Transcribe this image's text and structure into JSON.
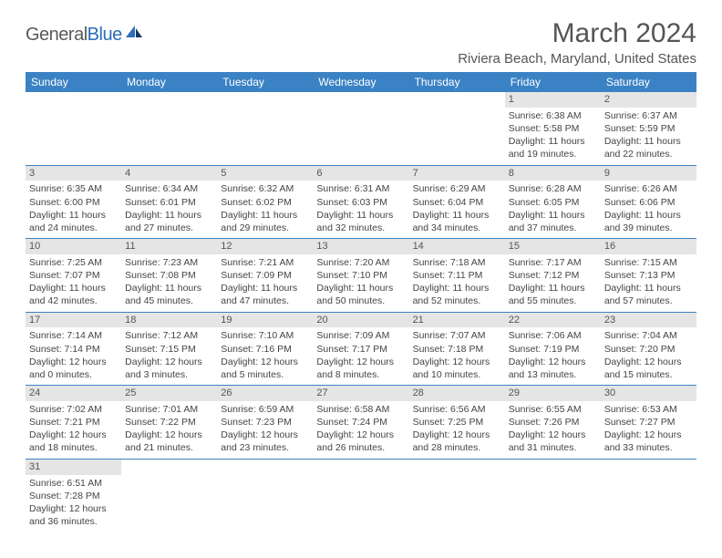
{
  "logo": {
    "text1": "General",
    "text2": "Blue"
  },
  "title": "March 2024",
  "location": "Riviera Beach, Maryland, United States",
  "colors": {
    "header_bg": "#3b82c4",
    "header_text": "#ffffff",
    "daynum_bg": "#e5e5e5",
    "border": "#3b82c4",
    "text": "#444444",
    "title_color": "#555555"
  },
  "day_headers": [
    "Sunday",
    "Monday",
    "Tuesday",
    "Wednesday",
    "Thursday",
    "Friday",
    "Saturday"
  ],
  "weeks": [
    [
      null,
      null,
      null,
      null,
      null,
      {
        "d": "1",
        "sr": "6:38 AM",
        "ss": "5:58 PM",
        "dl1": "11 hours",
        "dl2": "and 19 minutes."
      },
      {
        "d": "2",
        "sr": "6:37 AM",
        "ss": "5:59 PM",
        "dl1": "11 hours",
        "dl2": "and 22 minutes."
      }
    ],
    [
      {
        "d": "3",
        "sr": "6:35 AM",
        "ss": "6:00 PM",
        "dl1": "11 hours",
        "dl2": "and 24 minutes."
      },
      {
        "d": "4",
        "sr": "6:34 AM",
        "ss": "6:01 PM",
        "dl1": "11 hours",
        "dl2": "and 27 minutes."
      },
      {
        "d": "5",
        "sr": "6:32 AM",
        "ss": "6:02 PM",
        "dl1": "11 hours",
        "dl2": "and 29 minutes."
      },
      {
        "d": "6",
        "sr": "6:31 AM",
        "ss": "6:03 PM",
        "dl1": "11 hours",
        "dl2": "and 32 minutes."
      },
      {
        "d": "7",
        "sr": "6:29 AM",
        "ss": "6:04 PM",
        "dl1": "11 hours",
        "dl2": "and 34 minutes."
      },
      {
        "d": "8",
        "sr": "6:28 AM",
        "ss": "6:05 PM",
        "dl1": "11 hours",
        "dl2": "and 37 minutes."
      },
      {
        "d": "9",
        "sr": "6:26 AM",
        "ss": "6:06 PM",
        "dl1": "11 hours",
        "dl2": "and 39 minutes."
      }
    ],
    [
      {
        "d": "10",
        "sr": "7:25 AM",
        "ss": "7:07 PM",
        "dl1": "11 hours",
        "dl2": "and 42 minutes."
      },
      {
        "d": "11",
        "sr": "7:23 AM",
        "ss": "7:08 PM",
        "dl1": "11 hours",
        "dl2": "and 45 minutes."
      },
      {
        "d": "12",
        "sr": "7:21 AM",
        "ss": "7:09 PM",
        "dl1": "11 hours",
        "dl2": "and 47 minutes."
      },
      {
        "d": "13",
        "sr": "7:20 AM",
        "ss": "7:10 PM",
        "dl1": "11 hours",
        "dl2": "and 50 minutes."
      },
      {
        "d": "14",
        "sr": "7:18 AM",
        "ss": "7:11 PM",
        "dl1": "11 hours",
        "dl2": "and 52 minutes."
      },
      {
        "d": "15",
        "sr": "7:17 AM",
        "ss": "7:12 PM",
        "dl1": "11 hours",
        "dl2": "and 55 minutes."
      },
      {
        "d": "16",
        "sr": "7:15 AM",
        "ss": "7:13 PM",
        "dl1": "11 hours",
        "dl2": "and 57 minutes."
      }
    ],
    [
      {
        "d": "17",
        "sr": "7:14 AM",
        "ss": "7:14 PM",
        "dl1": "12 hours",
        "dl2": "and 0 minutes."
      },
      {
        "d": "18",
        "sr": "7:12 AM",
        "ss": "7:15 PM",
        "dl1": "12 hours",
        "dl2": "and 3 minutes."
      },
      {
        "d": "19",
        "sr": "7:10 AM",
        "ss": "7:16 PM",
        "dl1": "12 hours",
        "dl2": "and 5 minutes."
      },
      {
        "d": "20",
        "sr": "7:09 AM",
        "ss": "7:17 PM",
        "dl1": "12 hours",
        "dl2": "and 8 minutes."
      },
      {
        "d": "21",
        "sr": "7:07 AM",
        "ss": "7:18 PM",
        "dl1": "12 hours",
        "dl2": "and 10 minutes."
      },
      {
        "d": "22",
        "sr": "7:06 AM",
        "ss": "7:19 PM",
        "dl1": "12 hours",
        "dl2": "and 13 minutes."
      },
      {
        "d": "23",
        "sr": "7:04 AM",
        "ss": "7:20 PM",
        "dl1": "12 hours",
        "dl2": "and 15 minutes."
      }
    ],
    [
      {
        "d": "24",
        "sr": "7:02 AM",
        "ss": "7:21 PM",
        "dl1": "12 hours",
        "dl2": "and 18 minutes."
      },
      {
        "d": "25",
        "sr": "7:01 AM",
        "ss": "7:22 PM",
        "dl1": "12 hours",
        "dl2": "and 21 minutes."
      },
      {
        "d": "26",
        "sr": "6:59 AM",
        "ss": "7:23 PM",
        "dl1": "12 hours",
        "dl2": "and 23 minutes."
      },
      {
        "d": "27",
        "sr": "6:58 AM",
        "ss": "7:24 PM",
        "dl1": "12 hours",
        "dl2": "and 26 minutes."
      },
      {
        "d": "28",
        "sr": "6:56 AM",
        "ss": "7:25 PM",
        "dl1": "12 hours",
        "dl2": "and 28 minutes."
      },
      {
        "d": "29",
        "sr": "6:55 AM",
        "ss": "7:26 PM",
        "dl1": "12 hours",
        "dl2": "and 31 minutes."
      },
      {
        "d": "30",
        "sr": "6:53 AM",
        "ss": "7:27 PM",
        "dl1": "12 hours",
        "dl2": "and 33 minutes."
      }
    ],
    [
      {
        "d": "31",
        "sr": "6:51 AM",
        "ss": "7:28 PM",
        "dl1": "12 hours",
        "dl2": "and 36 minutes."
      },
      null,
      null,
      null,
      null,
      null,
      null
    ]
  ],
  "labels": {
    "sunrise": "Sunrise:",
    "sunset": "Sunset:",
    "daylight": "Daylight:"
  }
}
